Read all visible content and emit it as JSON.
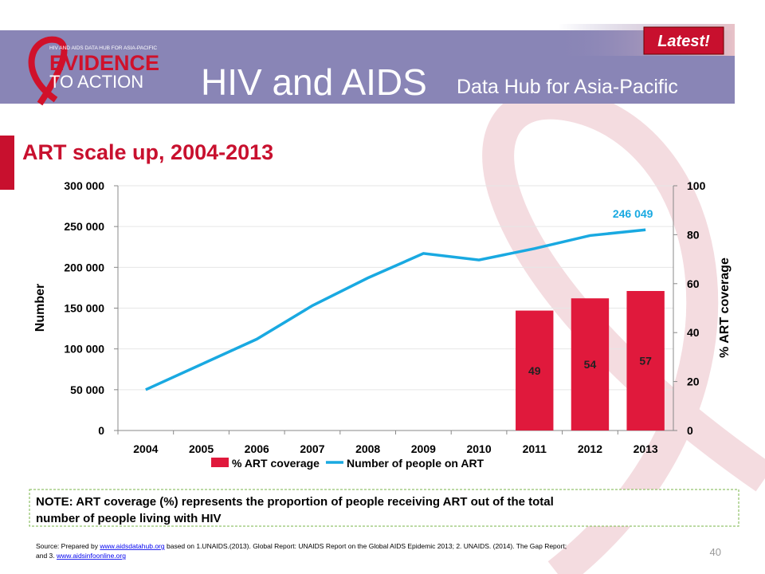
{
  "header": {
    "logo_top": "HIV AND AIDS DATA HUB FOR ASIA-PACIFIC",
    "logo_main": "EVIDENCE",
    "logo_sub": "TO ACTION",
    "title": "HIV and AIDS",
    "subtitle": "Data Hub for Asia-Pacific",
    "badge": "Latest!"
  },
  "slide_title": "ART scale up, 2004-2013",
  "chart_data": {
    "type": "combo",
    "categories": [
      "2004",
      "2005",
      "2006",
      "2007",
      "2008",
      "2009",
      "2010",
      "2011",
      "2012",
      "2013"
    ],
    "series": [
      {
        "name": "% ART coverage",
        "type": "bar",
        "axis": "y2",
        "color": "#e0193c",
        "values": [
          null,
          null,
          null,
          null,
          null,
          null,
          null,
          49,
          54,
          57
        ]
      },
      {
        "name": "Number of people on ART",
        "type": "line",
        "color": "#19a9e1",
        "values": [
          50000,
          81000,
          112000,
          153000,
          187000,
          217000,
          209000,
          223000,
          239000,
          246049
        ],
        "value_labels": [
          null,
          null,
          null,
          null,
          null,
          null,
          null,
          null,
          null,
          "246 049"
        ]
      }
    ],
    "ylabel": "Number",
    "y2label": "% ART coverage",
    "ylim": [
      0,
      300000
    ],
    "yticks": [
      0,
      {
        "value": 50000,
        "label": "50 000"
      },
      {
        "value": 100000,
        "label": "100 000"
      },
      {
        "value": 150000,
        "label": "150 000"
      },
      {
        "value": 200000,
        "label": "200 000"
      },
      {
        "value": 250000,
        "label": "250 000"
      },
      {
        "value": 300000,
        "label": "300 000"
      }
    ],
    "y2lim": [
      0,
      100
    ],
    "y2ticks": [
      0,
      20,
      40,
      60,
      80,
      100
    ],
    "grid": true
  },
  "note": [
    "NOTE: ART coverage (%) represents the proportion of people receiving ART out of the total",
    "number of people living with HIV"
  ],
  "source": {
    "prefix": "Source: Prepared by",
    "link1": "www.aidsdatahub.org",
    "middle": "based on 1.UNAIDS.(2013). Global Report: UNAIDS Report on the Global AIDS Epidemic 2013; 2. UNAIDS. (2014). The Gap Report;",
    "line2_prefix": "and 3.",
    "link2": "www.aidsinfoonline.org"
  },
  "page_number": "40"
}
